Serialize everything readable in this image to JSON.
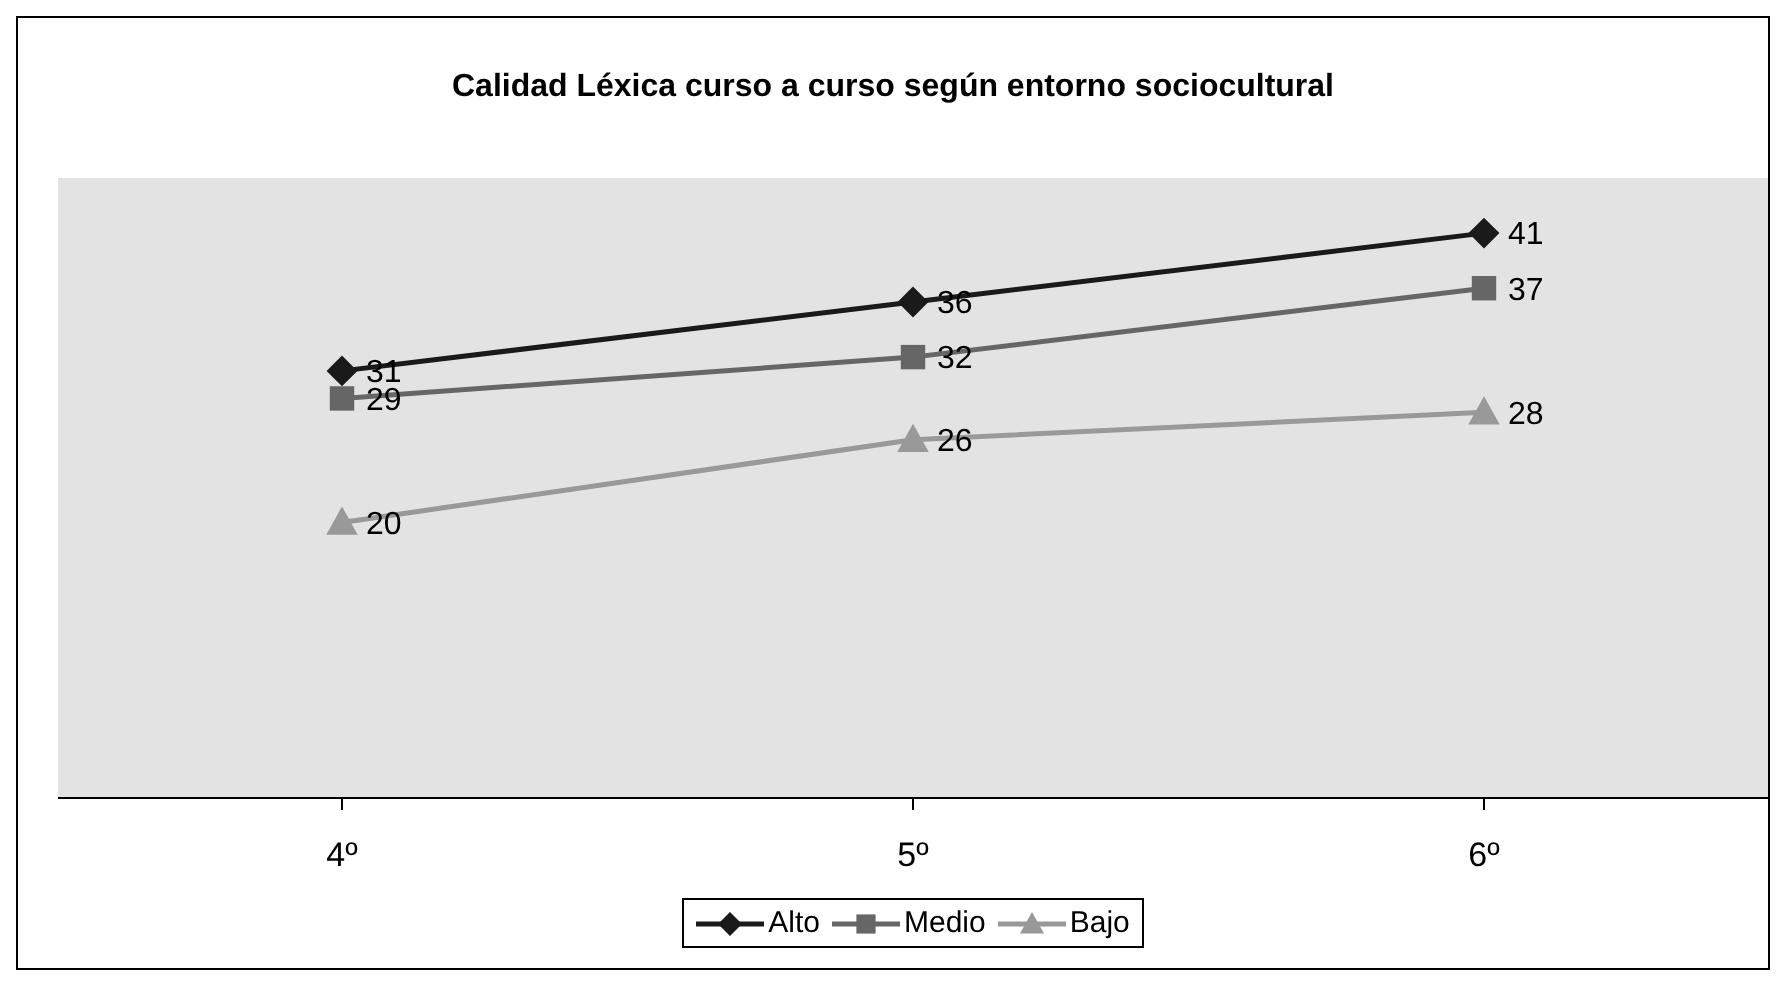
{
  "chart_data": {
    "type": "line",
    "title": "Calidad Léxica curso a curso según entorno sociocultural",
    "categories": [
      "4º",
      "5º",
      "6º"
    ],
    "series": [
      {
        "name": "Alto",
        "color": "#1a1a1a",
        "marker": "diamond",
        "values": [
          31,
          36,
          41
        ]
      },
      {
        "name": "Medio",
        "color": "#666666",
        "marker": "square",
        "values": [
          29,
          32,
          37
        ]
      },
      {
        "name": "Bajo",
        "color": "#999999",
        "marker": "triangle",
        "values": [
          20,
          26,
          28
        ]
      }
    ],
    "ylim": [
      0,
      45
    ],
    "tick_labels": "x",
    "data_labels": true,
    "legend": "bottom"
  }
}
